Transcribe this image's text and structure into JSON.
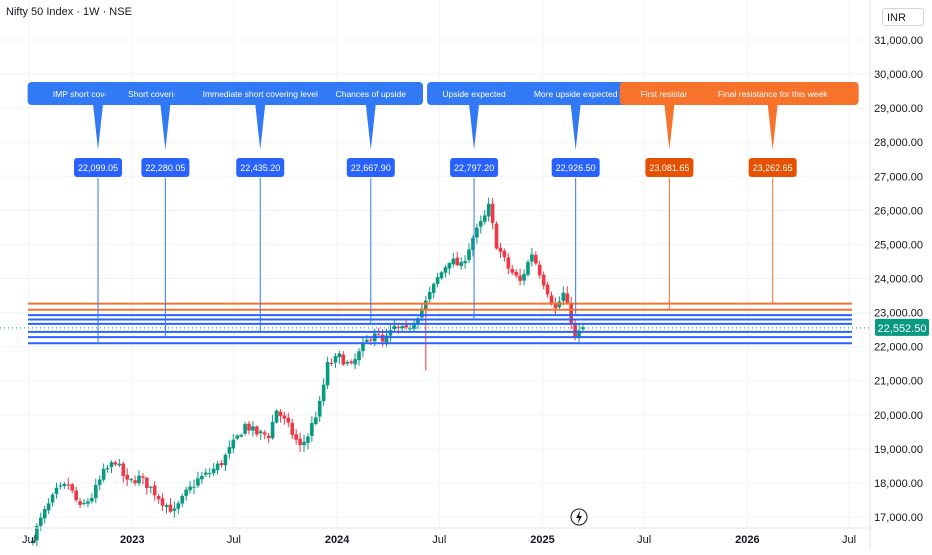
{
  "header": {
    "title": "Nifty 50 Index · 1W · NSE",
    "currency": "INR"
  },
  "colors": {
    "up": "#089981",
    "down": "#f23645",
    "grid": "#f0f3fa",
    "blue": "#2962ff",
    "blue_label": "#3179f5",
    "orange": "#f7722a",
    "orange_tag": "#e65100",
    "last_price_bg": "#089981"
  },
  "chart_data": {
    "type": "candlestick",
    "title": "Nifty 50 Index · 1W · NSE",
    "currency": "INR",
    "ylim": [
      16800,
      31700
    ],
    "y_ticks": [
      17000,
      18000,
      19000,
      20000,
      21000,
      22000,
      23000,
      24000,
      25000,
      26000,
      27000,
      28000,
      29000,
      30000,
      31000
    ],
    "y_tick_labels": [
      "17,000.00",
      "18,000.00",
      "19,000.00",
      "20,000.00",
      "21,000.00",
      "22,000.00",
      "23,000.00",
      "24,000.00",
      "25,000.00",
      "26,000.00",
      "27,000.00",
      "28,000.00",
      "29,000.00",
      "30,000.00",
      "31,000.00"
    ],
    "x_range": [
      "2022-07-01",
      "2026-07-01"
    ],
    "x_ticks": [
      {
        "label": "Jul",
        "date": "2022-07-01"
      },
      {
        "label": "2023",
        "date": "2023-01-01",
        "bold": true
      },
      {
        "label": "Jul",
        "date": "2023-07-01"
      },
      {
        "label": "2024",
        "date": "2024-01-01",
        "bold": true
      },
      {
        "label": "Jul",
        "date": "2024-07-01"
      },
      {
        "label": "2025",
        "date": "2025-01-01",
        "bold": true
      },
      {
        "label": "Jul",
        "date": "2025-07-01"
      },
      {
        "label": "2026",
        "date": "2026-01-01",
        "bold": true
      },
      {
        "label": "Jul",
        "date": "2026-07-01"
      }
    ],
    "last_price": 22552.5,
    "last_price_label": "22,552.50",
    "close_path": [
      [
        "2022-07-01",
        16200
      ],
      [
        "2022-07-29",
        17150
      ],
      [
        "2022-08-19",
        17750
      ],
      [
        "2022-09-09",
        17950
      ],
      [
        "2022-09-30",
        17250
      ],
      [
        "2022-10-21",
        17600
      ],
      [
        "2022-11-11",
        18300
      ],
      [
        "2022-12-02",
        18650
      ],
      [
        "2022-12-23",
        18000
      ],
      [
        "2023-01-13",
        18150
      ],
      [
        "2023-02-03",
        17850
      ],
      [
        "2023-02-24",
        17450
      ],
      [
        "2023-03-17",
        17150
      ],
      [
        "2023-04-07",
        17700
      ],
      [
        "2023-04-28",
        18100
      ],
      [
        "2023-05-19",
        18300
      ],
      [
        "2023-06-09",
        18600
      ],
      [
        "2023-06-30",
        19150
      ],
      [
        "2023-07-21",
        19700
      ],
      [
        "2023-08-11",
        19450
      ],
      [
        "2023-09-01",
        19400
      ],
      [
        "2023-09-15",
        20150
      ],
      [
        "2023-10-06",
        19650
      ],
      [
        "2023-10-27",
        19050
      ],
      [
        "2023-11-10",
        19400
      ],
      [
        "2023-12-01",
        20300
      ],
      [
        "2023-12-15",
        21450
      ],
      [
        "2024-01-05",
        21700
      ],
      [
        "2024-01-26",
        21400
      ],
      [
        "2024-02-16",
        22000
      ],
      [
        "2024-03-08",
        22450
      ],
      [
        "2024-03-22",
        22100
      ],
      [
        "2024-04-12",
        22550
      ],
      [
        "2024-05-03",
        22450
      ],
      [
        "2024-05-24",
        22950
      ],
      [
        "2024-06-07",
        23300
      ],
      [
        "2024-06-28",
        24000
      ],
      [
        "2024-07-19",
        24550
      ],
      [
        "2024-08-09",
        24350
      ],
      [
        "2024-08-30",
        25200
      ],
      [
        "2024-09-20",
        25800
      ],
      [
        "2024-09-27",
        26100
      ],
      [
        "2024-10-11",
        25000
      ],
      [
        "2024-11-01",
        24300
      ],
      [
        "2024-11-22",
        23900
      ],
      [
        "2024-12-13",
        24750
      ],
      [
        "2025-01-03",
        23900
      ],
      [
        "2025-01-24",
        23100
      ],
      [
        "2025-02-07",
        23550
      ],
      [
        "2025-02-21",
        22800
      ],
      [
        "2025-02-28",
        22250
      ],
      [
        "2025-03-14",
        22550
      ]
    ],
    "levels": [
      {
        "value": 22099.05,
        "label": "22,099.05",
        "callout": "IMP short covering level",
        "date": "2022-11-01",
        "color": "blue"
      },
      {
        "value": 22280.05,
        "label": "22,280.05",
        "callout": "Short covering level",
        "date": "2023-03-01",
        "color": "blue"
      },
      {
        "value": 22435.2,
        "label": "22,435.20",
        "callout": "Immediate short covering level",
        "date": "2023-08-17",
        "color": "blue"
      },
      {
        "value": 22667.9,
        "label": "22,667.90",
        "callout": "Chances of upside",
        "date": "2024-03-01",
        "color": "blue"
      },
      {
        "value": 22797.2,
        "label": "22,797.20",
        "callout": "Upside expected",
        "date": "2024-09-01",
        "color": "blue"
      },
      {
        "value": 22926.5,
        "label": "22,926.50",
        "callout": "More upside expected",
        "date": "2025-03-01",
        "color": "blue"
      },
      {
        "value": 23081.65,
        "label": "23,081.65",
        "callout": "First resistance",
        "date": "2025-08-15",
        "color": "orange"
      },
      {
        "value": 23262.65,
        "label": "23,262.65",
        "callout": "Final resistance for this week",
        "date": "2026-02-15",
        "color": "orange"
      }
    ],
    "legend": "none",
    "grid": true
  }
}
